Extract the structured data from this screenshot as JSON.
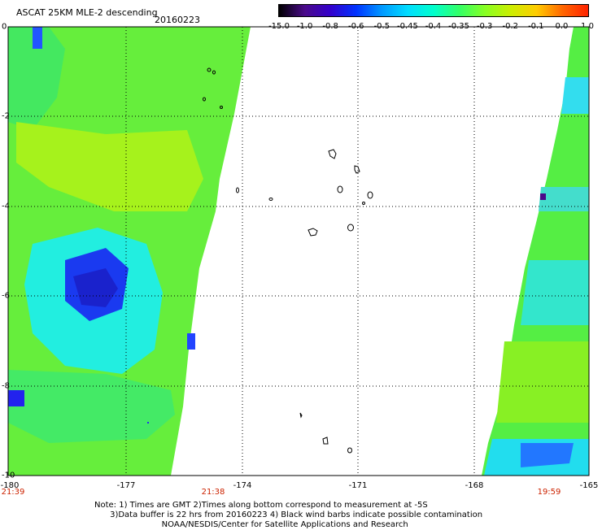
{
  "header": {
    "title": "ASCAT 25KM MLE-2 descending",
    "date": "20160223"
  },
  "colorbar": {
    "ticks": [
      "-15.0",
      "-1.0",
      "-0.8",
      "-0.6",
      "-0.5",
      "-0.45",
      "-0.4",
      "-0.35",
      "-0.3",
      "-0.2",
      "-0.1",
      "0.0",
      "1.0"
    ],
    "colors": [
      "#000000",
      "#4a0a8a",
      "#3300cc",
      "#0033ff",
      "#0099ff",
      "#00ddff",
      "#00ffcc",
      "#33ff66",
      "#88ff22",
      "#ccee00",
      "#ffcc00",
      "#ff6600",
      "#ff2200"
    ]
  },
  "axes": {
    "y_ticks": [
      "0",
      "-2",
      "-4",
      "-6",
      "-8",
      "-10"
    ],
    "x_ticks": [
      "-180",
      "-177",
      "-174",
      "-171",
      "-168",
      "-165"
    ]
  },
  "times": {
    "left_start": "21:39",
    "left_end": "21:38",
    "right": "19:59"
  },
  "notes": {
    "line1": "Note: 1) Times are GMT 2)Times along bottom correspond to measurement at -5S",
    "line2": "3)Data buffer is 22 hrs from 20160223 4) Black wind barbs indicate possible contamination",
    "line3": "NOAA/NESDIS/Center for Satellite Applications and Research"
  },
  "palette": {
    "green": "#55ee44",
    "lime": "#99f020",
    "cyan": "#22eedd",
    "blue": "#0044ff",
    "deepblue": "#1a22dd"
  }
}
